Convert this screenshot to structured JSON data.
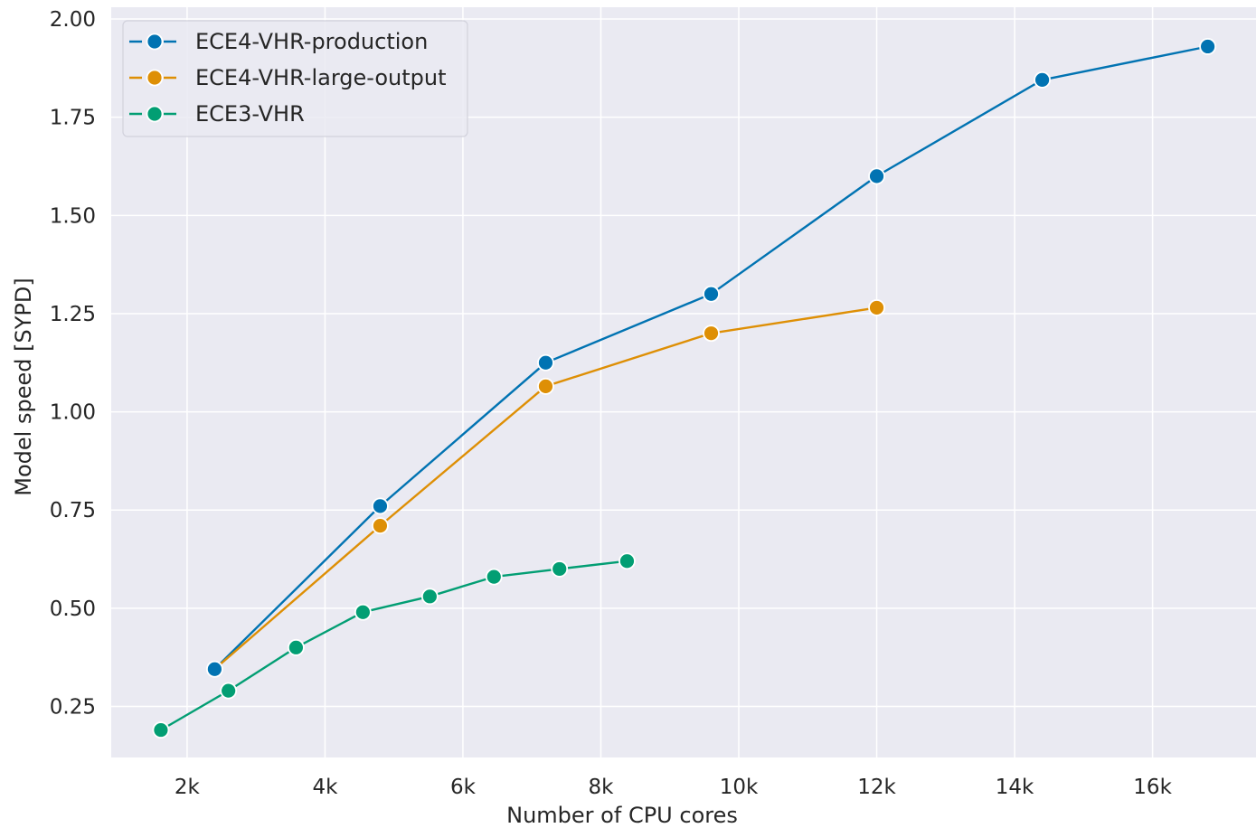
{
  "chart_data": {
    "type": "line",
    "title": "",
    "xlabel": "Number of CPU cores",
    "ylabel": "Model speed [SYPD]",
    "xlim": [
      900,
      17500
    ],
    "ylim": [
      0.12,
      2.03
    ],
    "grid": true,
    "legend_position": "top-left",
    "x_ticks": [
      {
        "value": 2000,
        "label": "2k"
      },
      {
        "value": 4000,
        "label": "4k"
      },
      {
        "value": 6000,
        "label": "6k"
      },
      {
        "value": 8000,
        "label": "8k"
      },
      {
        "value": 10000,
        "label": "10k"
      },
      {
        "value": 12000,
        "label": "12k"
      },
      {
        "value": 14000,
        "label": "14k"
      },
      {
        "value": 16000,
        "label": "16k"
      }
    ],
    "y_ticks": [
      {
        "value": 0.25,
        "label": "0.25"
      },
      {
        "value": 0.5,
        "label": "0.50"
      },
      {
        "value": 0.75,
        "label": "0.75"
      },
      {
        "value": 1.0,
        "label": "1.00"
      },
      {
        "value": 1.25,
        "label": "1.25"
      },
      {
        "value": 1.5,
        "label": "1.50"
      },
      {
        "value": 1.75,
        "label": "1.75"
      },
      {
        "value": 2.0,
        "label": "2.00"
      }
    ],
    "series": [
      {
        "name": "ECE4-VHR-production",
        "color": "#0173b2",
        "x": [
          2400,
          4800,
          7200,
          9600,
          12000,
          14400,
          16800
        ],
        "y": [
          0.345,
          0.76,
          1.125,
          1.3,
          1.6,
          1.845,
          1.93
        ]
      },
      {
        "name": "ECE4-VHR-large-output",
        "color": "#de8f05",
        "x": [
          2400,
          4800,
          7200,
          9600,
          12000
        ],
        "y": [
          0.345,
          0.71,
          1.065,
          1.2,
          1.265
        ]
      },
      {
        "name": "ECE3-VHR",
        "color": "#029e73",
        "x": [
          1620,
          2600,
          3580,
          4550,
          5520,
          6450,
          7400,
          8380
        ],
        "y": [
          0.19,
          0.29,
          0.4,
          0.49,
          0.53,
          0.58,
          0.6,
          0.62
        ]
      }
    ]
  },
  "style": {
    "plot_background": "#eaeaf2",
    "grid_color": "#ffffff",
    "marker_edge": "#ffffff"
  }
}
